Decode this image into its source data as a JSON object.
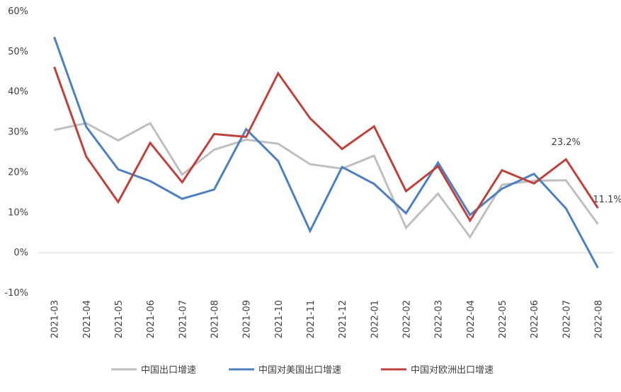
{
  "chart_data": {
    "type": "line",
    "title": "",
    "xlabel": "",
    "ylabel": "",
    "ylim": [
      -10,
      60
    ],
    "yticks": [
      -10,
      0,
      10,
      20,
      30,
      40,
      50,
      60
    ],
    "ytick_labels": [
      "-10%",
      "0%",
      "10%",
      "20%",
      "30%",
      "40%",
      "50%",
      "60%"
    ],
    "grid": false,
    "legend_position": "bottom",
    "categories": [
      "2021-03",
      "2021-04",
      "2021-05",
      "2021-06",
      "2021-07",
      "2021-08",
      "2021-09",
      "2021-10",
      "2021-11",
      "2021-12",
      "2022-01",
      "2022-02",
      "2022-03",
      "2022-04",
      "2022-05",
      "2022-06",
      "2022-07",
      "2022-08"
    ],
    "series": [
      {
        "name": "中国出口增速",
        "color": "#bfbfbf",
        "values": [
          30.5,
          32.2,
          27.9,
          32.2,
          19.4,
          25.6,
          28.1,
          27.1,
          22.0,
          20.9,
          24.1,
          6.2,
          14.7,
          3.9,
          16.9,
          17.9,
          18.0,
          7.1
        ]
      },
      {
        "name": "中国对美国出口增速",
        "color": "#4e7fbf",
        "values": [
          53.6,
          31.3,
          20.7,
          17.8,
          13.4,
          15.7,
          30.7,
          22.8,
          5.4,
          21.3,
          17.1,
          9.8,
          22.4,
          9.4,
          15.9,
          19.6,
          11.0,
          -3.8
        ]
      },
      {
        "name": "中国对欧洲出口增速",
        "color": "#c0403c",
        "values": [
          46.2,
          23.9,
          12.6,
          27.3,
          17.5,
          29.5,
          28.8,
          44.6,
          33.4,
          25.8,
          31.4,
          15.3,
          21.5,
          8.0,
          20.5,
          17.2,
          23.2,
          11.1
        ]
      }
    ],
    "annotations": [
      {
        "text": "23.2%",
        "category": "2022-07",
        "value": 23.2
      },
      {
        "text": "11.1%",
        "category": "2022-08",
        "value": 11.1
      }
    ]
  }
}
